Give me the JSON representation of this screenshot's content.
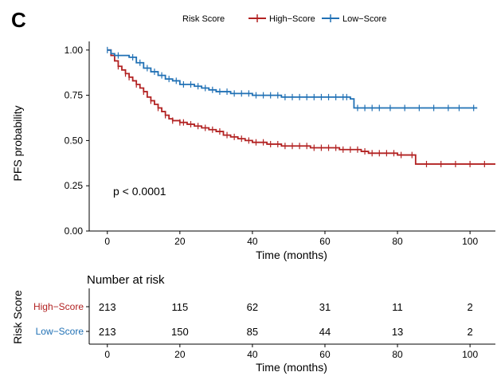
{
  "panel_letter": "C",
  "chart_data": {
    "type": "line",
    "subtype": "kaplan-meier",
    "ylabel": "PFS probability",
    "xlabel": "Time (months)",
    "xlim": [
      -5,
      107
    ],
    "ylim": [
      0,
      1.03
    ],
    "x_ticks": [
      0,
      20,
      40,
      60,
      80,
      100
    ],
    "y_ticks": [
      0.0,
      0.25,
      0.5,
      0.75,
      1.0
    ],
    "y_tick_labels": [
      "0.00",
      "0.25",
      "0.50",
      "0.75",
      "1.00"
    ],
    "grid": false,
    "legend": {
      "title": "Risk Score",
      "position": "top",
      "entries": [
        "High−Score",
        "Low−Score"
      ]
    },
    "annotation": "p < 0.0001",
    "colors": {
      "High": "#b22222",
      "Low": "#2171b5"
    },
    "series": [
      {
        "name": "High−Score",
        "color": "#b22222",
        "x": [
          0,
          1,
          2,
          3,
          4,
          5,
          6,
          7,
          8,
          9,
          10,
          11,
          12,
          13,
          14,
          15,
          16,
          17,
          18,
          20,
          22,
          24,
          26,
          28,
          30,
          32,
          34,
          36,
          38,
          40,
          42,
          44,
          46,
          48,
          50,
          52,
          54,
          56,
          58,
          60,
          62,
          64,
          66,
          68,
          70,
          72,
          74,
          76,
          78,
          80,
          82,
          84,
          85,
          87,
          90,
          93,
          95,
          98,
          100,
          102,
          105,
          107
        ],
        "y": [
          1.0,
          0.97,
          0.94,
          0.91,
          0.89,
          0.87,
          0.85,
          0.83,
          0.81,
          0.79,
          0.77,
          0.74,
          0.72,
          0.7,
          0.68,
          0.66,
          0.64,
          0.62,
          0.61,
          0.6,
          0.59,
          0.58,
          0.57,
          0.56,
          0.55,
          0.53,
          0.52,
          0.51,
          0.5,
          0.49,
          0.49,
          0.48,
          0.48,
          0.47,
          0.47,
          0.47,
          0.47,
          0.46,
          0.46,
          0.46,
          0.46,
          0.45,
          0.45,
          0.45,
          0.44,
          0.43,
          0.43,
          0.43,
          0.43,
          0.42,
          0.42,
          0.42,
          0.37,
          0.37,
          0.37,
          0.37,
          0.37,
          0.37,
          0.37,
          0.37,
          0.37,
          0.37
        ],
        "censor_x": [
          3,
          5,
          6,
          8,
          10,
          12,
          14,
          16,
          18,
          20,
          21,
          23,
          25,
          27,
          29,
          31,
          33,
          35,
          37,
          39,
          41,
          43,
          45,
          47,
          49,
          51,
          53,
          55,
          57,
          59,
          61,
          63,
          65,
          67,
          69,
          71,
          73,
          75,
          77,
          79,
          81,
          84,
          88,
          92,
          96,
          100,
          104
        ]
      },
      {
        "name": "Low−Score",
        "color": "#2171b5",
        "x": [
          0,
          1,
          2,
          4,
          6,
          8,
          10,
          12,
          14,
          16,
          18,
          20,
          22,
          24,
          26,
          28,
          30,
          32,
          34,
          36,
          38,
          40,
          44,
          48,
          52,
          56,
          60,
          64,
          67,
          68,
          72,
          76,
          80,
          85,
          90,
          95,
          100,
          102
        ],
        "y": [
          1.0,
          0.98,
          0.97,
          0.97,
          0.96,
          0.93,
          0.9,
          0.88,
          0.86,
          0.84,
          0.83,
          0.81,
          0.81,
          0.8,
          0.79,
          0.78,
          0.77,
          0.77,
          0.76,
          0.76,
          0.76,
          0.75,
          0.75,
          0.74,
          0.74,
          0.74,
          0.74,
          0.74,
          0.73,
          0.68,
          0.68,
          0.68,
          0.68,
          0.68,
          0.68,
          0.68,
          0.68,
          0.68
        ],
        "censor_x": [
          0,
          3,
          7,
          9,
          11,
          13,
          15,
          17,
          19,
          21,
          23,
          25,
          27,
          29,
          31,
          33,
          35,
          37,
          39,
          41,
          43,
          45,
          47,
          49,
          51,
          53,
          55,
          57,
          59,
          61,
          63,
          65,
          66,
          69,
          71,
          73,
          75,
          78,
          82,
          86,
          90,
          94,
          97,
          101
        ]
      }
    ]
  },
  "risk_table": {
    "title": "Number at risk",
    "ylabel": "Risk Score",
    "xlabel": "Time (months)",
    "times": [
      0,
      20,
      40,
      60,
      80,
      100
    ],
    "time_labels": [
      "0",
      "20",
      "40",
      "60",
      "80",
      "100"
    ],
    "rows": [
      {
        "label": "High−Score",
        "color": "#b22222",
        "counts": [
          "213",
          "115",
          "62",
          "31",
          "11",
          "2"
        ]
      },
      {
        "label": "Low−Score",
        "color": "#2171b5",
        "counts": [
          "213",
          "150",
          "85",
          "44",
          "13",
          "2"
        ]
      }
    ]
  }
}
